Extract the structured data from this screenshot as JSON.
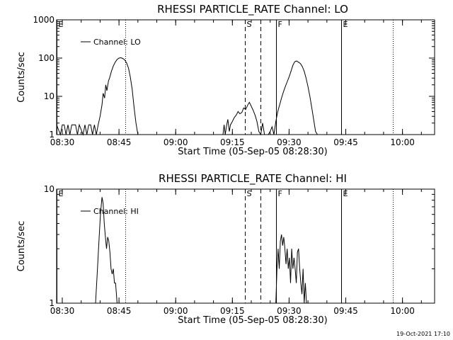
{
  "chart_data": [
    {
      "type": "line",
      "title": "RHESSI PARTICLE_RATE Channel: LO",
      "xlabel": "Start Time (05-Sep-05 08:28:30)",
      "ylabel": "Counts/sec",
      "yscale": "log",
      "ylim": [
        1,
        1000
      ],
      "xlim_minutes": [
        0,
        100
      ],
      "x_ticks": [
        {
          "t": 1.5,
          "label": "08:30"
        },
        {
          "t": 16.5,
          "label": "08:45"
        },
        {
          "t": 31.5,
          "label": "09:00"
        },
        {
          "t": 46.5,
          "label": "09:15"
        },
        {
          "t": 61.5,
          "label": "09:30"
        },
        {
          "t": 76.5,
          "label": "09:45"
        },
        {
          "t": 91.5,
          "label": "10:00"
        }
      ],
      "y_ticks": [
        {
          "v": 1,
          "label": "1"
        },
        {
          "v": 10,
          "label": "10"
        },
        {
          "v": 100,
          "label": "100"
        },
        {
          "v": 1000,
          "label": "1000"
        }
      ],
      "legend": {
        "label": "Channel: LO",
        "position": "top-left"
      },
      "markers": [
        {
          "t": 0.0,
          "style": "solid",
          "label": "E"
        },
        {
          "t": 18.2,
          "style": "dotted",
          "label": ""
        },
        {
          "t": 49.8,
          "style": "dashed",
          "label": "S"
        },
        {
          "t": 54.0,
          "style": "dashed",
          "label": ""
        },
        {
          "t": 58.0,
          "style": "solid",
          "label": "F"
        },
        {
          "t": 75.2,
          "style": "solid",
          "label": "E"
        },
        {
          "t": 89.0,
          "style": "dotted",
          "label": ""
        }
      ],
      "series": [
        {
          "name": "Channel: LO",
          "segments": [
            [
              [
                0,
                1.8
              ],
              [
                1,
                1
              ],
              [
                1.5,
                1.8
              ],
              [
                2,
                1.8
              ],
              [
                2.5,
                1
              ],
              [
                3,
                1.8
              ],
              [
                3.5,
                1
              ],
              [
                4,
                1.8
              ],
              [
                5,
                1.8
              ],
              [
                5.5,
                1
              ],
              [
                6,
                1.8
              ],
              [
                7,
                1
              ],
              [
                7.5,
                1.8
              ],
              [
                8,
                1
              ],
              [
                8.5,
                1.8
              ],
              [
                9,
                1.8
              ],
              [
                9.5,
                1
              ],
              [
                10,
                1.8
              ],
              [
                10.5,
                1
              ],
              [
                11,
                1.8
              ],
              [
                11.5,
                3
              ],
              [
                12,
                6
              ],
              [
                12.3,
                12
              ],
              [
                12.7,
                9
              ],
              [
                13,
                20
              ],
              [
                13.3,
                14
              ],
              [
                13.7,
                25
              ],
              [
                14,
                30
              ],
              [
                14.5,
                45
              ],
              [
                15,
                62
              ],
              [
                15.5,
                78
              ],
              [
                16,
                92
              ],
              [
                16.5,
                100
              ],
              [
                17,
                102
              ],
              [
                17.5,
                98
              ],
              [
                18,
                90
              ],
              [
                18.5,
                75
              ],
              [
                19,
                55
              ],
              [
                19.5,
                32
              ],
              [
                20,
                15
              ],
              [
                20.5,
                5
              ],
              [
                21,
                2
              ],
              [
                21.5,
                1
              ]
            ],
            [
              [
                44,
                1
              ],
              [
                44.3,
                1.8
              ],
              [
                44.6,
                1
              ],
              [
                45,
                1.8
              ],
              [
                45.3,
                2.5
              ],
              [
                45.7,
                1.2
              ],
              [
                46,
                1.8
              ],
              [
                46.5,
                2.2
              ],
              [
                47,
                2.8
              ],
              [
                47.5,
                3.2
              ],
              [
                48,
                4
              ],
              [
                48.5,
                3.5
              ],
              [
                49,
                3.8
              ],
              [
                49.5,
                5
              ],
              [
                50,
                4.5
              ],
              [
                50.5,
                5.8
              ],
              [
                51,
                7
              ],
              [
                51.5,
                5.5
              ],
              [
                52,
                4.3
              ],
              [
                52.5,
                3.2
              ],
              [
                53,
                2.2
              ],
              [
                53.5,
                1.2
              ],
              [
                54,
                1
              ],
              [
                54.5,
                2
              ],
              [
                55,
                1
              ]
            ],
            [
              [
                56,
                1
              ],
              [
                56.5,
                1.2
              ],
              [
                57,
                1.6
              ],
              [
                57.5,
                1
              ],
              [
                58,
                2.2
              ],
              [
                58.5,
                4
              ],
              [
                59,
                6
              ],
              [
                59.5,
                9
              ],
              [
                60,
                13
              ],
              [
                60.5,
                18
              ],
              [
                61,
                24
              ],
              [
                61.5,
                32
              ],
              [
                62,
                45
              ],
              [
                62.5,
                65
              ],
              [
                63,
                80
              ],
              [
                63.5,
                84
              ],
              [
                64,
                78
              ],
              [
                64.5,
                72
              ],
              [
                65,
                60
              ],
              [
                65.5,
                45
              ],
              [
                66,
                30
              ],
              [
                66.5,
                18
              ],
              [
                67,
                10
              ],
              [
                67.5,
                5
              ],
              [
                68,
                2.5
              ],
              [
                68.5,
                1.2
              ],
              [
                69,
                1
              ]
            ]
          ]
        }
      ]
    },
    {
      "type": "line",
      "title": "RHESSI PARTICLE_RATE Channel: HI",
      "xlabel": "Start Time (05-Sep-05 08:28:30)",
      "ylabel": "Counts/sec",
      "yscale": "log",
      "ylim": [
        1,
        10
      ],
      "xlim_minutes": [
        0,
        100
      ],
      "x_ticks": [
        {
          "t": 1.5,
          "label": "08:30"
        },
        {
          "t": 16.5,
          "label": "08:45"
        },
        {
          "t": 31.5,
          "label": "09:00"
        },
        {
          "t": 46.5,
          "label": "09:15"
        },
        {
          "t": 61.5,
          "label": "09:30"
        },
        {
          "t": 76.5,
          "label": "09:45"
        },
        {
          "t": 91.5,
          "label": "10:00"
        }
      ],
      "y_ticks": [
        {
          "v": 1,
          "label": "1"
        },
        {
          "v": 10,
          "label": "10"
        }
      ],
      "legend": {
        "label": "Channel: HI",
        "position": "top-left"
      },
      "markers": [
        {
          "t": 0.0,
          "style": "solid",
          "label": "E"
        },
        {
          "t": 18.2,
          "style": "dotted",
          "label": ""
        },
        {
          "t": 49.8,
          "style": "dashed",
          "label": "S"
        },
        {
          "t": 54.0,
          "style": "dashed",
          "label": ""
        },
        {
          "t": 58.0,
          "style": "solid",
          "label": "F"
        },
        {
          "t": 75.2,
          "style": "solid",
          "label": "E"
        },
        {
          "t": 89.0,
          "style": "dotted",
          "label": ""
        }
      ],
      "series": [
        {
          "name": "Channel: HI",
          "segments": [
            [
              [
                10.3,
                1
              ],
              [
                10.8,
                2
              ],
              [
                11.2,
                3.5
              ],
              [
                11.6,
                6
              ],
              [
                12,
                8.5
              ],
              [
                12.3,
                7.5
              ],
              [
                12.6,
                5
              ],
              [
                12.9,
                3.8
              ],
              [
                13.2,
                3
              ],
              [
                13.5,
                3.8
              ],
              [
                13.8,
                3.5
              ],
              [
                14.1,
                2.8
              ],
              [
                14.4,
                2
              ],
              [
                14.7,
                1.8
              ],
              [
                15,
                2
              ],
              [
                15.3,
                1.5
              ],
              [
                15.6,
                1.5
              ],
              [
                16,
                1
              ]
            ],
            [
              [
                58,
                1
              ],
              [
                58.3,
                2
              ],
              [
                58.6,
                3
              ],
              [
                58.9,
                2
              ],
              [
                59.2,
                3.5
              ],
              [
                59.5,
                4
              ],
              [
                59.8,
                3.2
              ],
              [
                60.1,
                3.8
              ],
              [
                60.4,
                3
              ],
              [
                60.7,
                2.2
              ],
              [
                61,
                3
              ],
              [
                61.3,
                2
              ],
              [
                61.6,
                2.5
              ],
              [
                61.9,
                1.5
              ],
              [
                62.2,
                3
              ],
              [
                62.5,
                2
              ],
              [
                62.8,
                2.5
              ],
              [
                63.1,
                2
              ],
              [
                63.4,
                1.5
              ],
              [
                63.7,
                2.8
              ],
              [
                64,
                3
              ],
              [
                64.3,
                2
              ],
              [
                64.6,
                1.5
              ],
              [
                64.9,
                1.2
              ],
              [
                65.2,
                2
              ],
              [
                65.5,
                1
              ],
              [
                65.8,
                1.5
              ],
              [
                66.1,
                1
              ]
            ]
          ]
        }
      ]
    }
  ],
  "footer": {
    "timestamp": "19-Oct-2021 17:10"
  }
}
